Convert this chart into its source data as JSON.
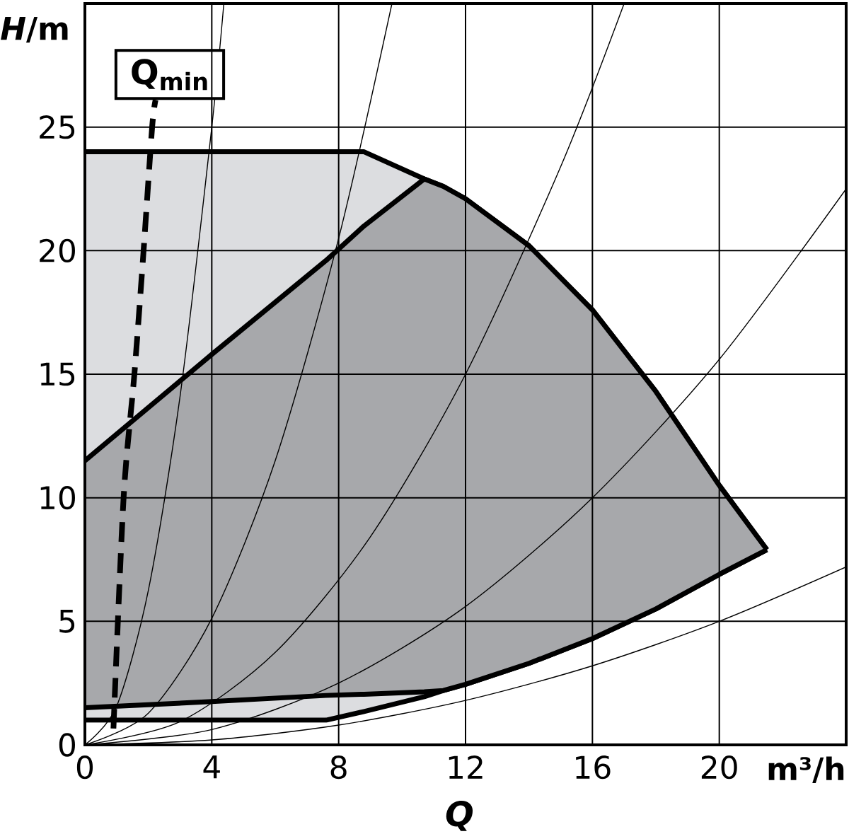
{
  "chart_data": {
    "type": "line",
    "xlabel": "Q",
    "ylabel": "*H*/m",
    "annotations": [
      "m³/h"
    ],
    "xlim": [
      0,
      24
    ],
    "ylim": [
      0,
      30
    ],
    "xticks": [
      0,
      4,
      8,
      12,
      16,
      20
    ],
    "yticks": [
      0,
      5,
      10,
      15,
      20,
      25
    ],
    "grid": true,
    "legend": false,
    "marker": "none",
    "series": [
      {
        "type": "area",
        "color": "#dcdde0",
        "x": [
          0,
          4,
          7.6,
          8.8,
          10.7,
          11.3,
          12,
          14,
          16,
          18,
          20,
          21.5
        ],
        "values": [
          24,
          24,
          24,
          24,
          22.9,
          22.6,
          22.1,
          20.2,
          17.6,
          14.3,
          10.5,
          7.9
        ]
      },
      {
        "color": "#000000",
        "x": [
          0,
          4,
          7.6,
          8.8,
          10.7,
          11.3,
          12,
          14,
          16,
          18,
          20,
          21.5
        ],
        "values": [
          1.0,
          1.0,
          1.0,
          1.35,
          1.95,
          2.2,
          2.45,
          3.3,
          4.3,
          5.5,
          6.9,
          7.9
        ]
      },
      {
        "type": "area",
        "color": "#a7a8ab",
        "x": [
          0,
          4,
          7.6,
          8.8,
          10.7,
          11.3,
          12,
          14,
          16,
          18,
          20,
          21.5
        ],
        "values": [
          11.5,
          15.8,
          19.6,
          21.0,
          22.9,
          22.6,
          22.1,
          20.2,
          17.6,
          14.3,
          10.5,
          7.9
        ]
      },
      {
        "color": "#000000",
        "x": [
          0,
          4,
          7.6,
          8.8,
          10.7,
          11.3,
          12,
          14,
          16,
          18,
          20,
          21.5
        ],
        "values": [
          1.5,
          1.75,
          2.0,
          2.05,
          2.15,
          2.2,
          2.45,
          3.3,
          4.3,
          5.5,
          6.9,
          7.9
        ]
      },
      {
        "color": "#000000",
        "x": [
          0,
          1,
          2,
          3,
          4,
          4.38
        ],
        "values": [
          0,
          1.56,
          6.25,
          14.1,
          25,
          30.0
        ]
      },
      {
        "color": "#000000",
        "x": [
          0,
          2,
          4,
          6,
          8,
          9.68
        ],
        "values": [
          0,
          1.28,
          5.12,
          11.5,
          20.5,
          30.0
        ]
      },
      {
        "color": "#000000",
        "x": [
          0,
          3,
          6,
          9,
          12,
          15,
          17
        ],
        "values": [
          0,
          0.94,
          3.74,
          8.42,
          15,
          23.4,
          30.0
        ]
      },
      {
        "color": "#000000",
        "x": [
          0,
          4,
          8,
          12,
          16,
          20,
          24
        ],
        "values": [
          0,
          0.62,
          2.5,
          5.6,
          10,
          15.6,
          22.5
        ]
      },
      {
        "color": "#000000",
        "x": [
          0,
          4,
          8,
          12,
          16,
          20,
          24
        ],
        "values": [
          0,
          0.2,
          0.8,
          1.8,
          3.2,
          5,
          7.2
        ]
      },
      {
        "name": "Q$_{min}$",
        "line_style": "dashed",
        "color": "#000000",
        "x": [
          0.9,
          1.22,
          1.56,
          1.85,
          2.12,
          2.23
        ],
        "values": [
          0.66,
          10,
          15,
          20,
          25,
          26.1
        ]
      }
    ]
  }
}
